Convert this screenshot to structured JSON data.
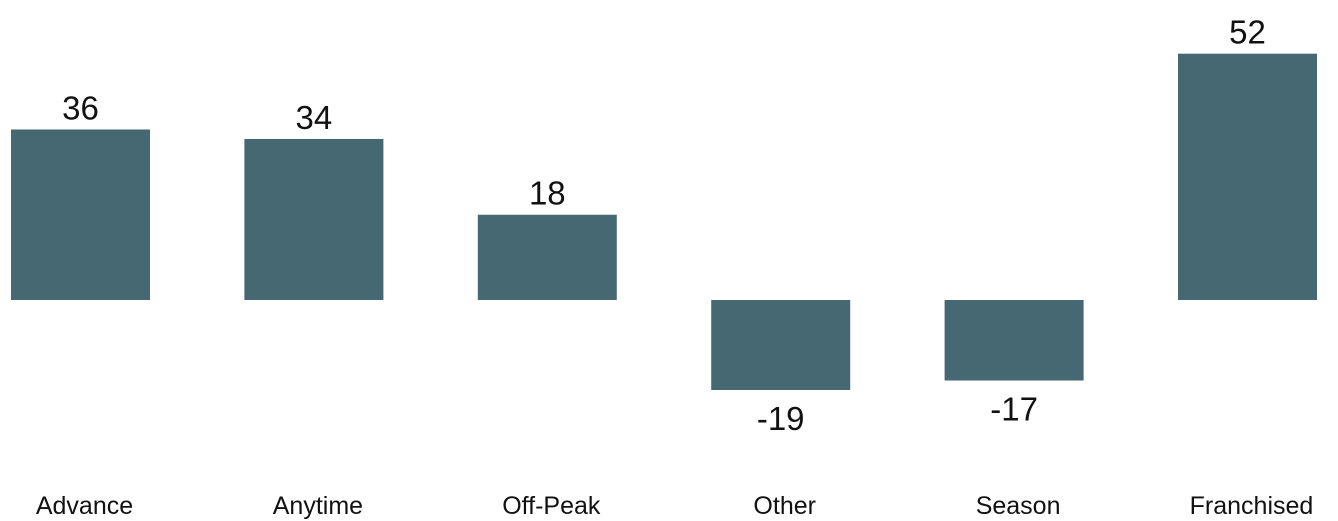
{
  "chart_data": {
    "type": "bar",
    "categories": [
      "Advance",
      "Anytime",
      "Off-Peak",
      "Other",
      "Season",
      "Franchised"
    ],
    "values": [
      36,
      34,
      18,
      -19,
      -17,
      52
    ],
    "color": "#466873"
  }
}
